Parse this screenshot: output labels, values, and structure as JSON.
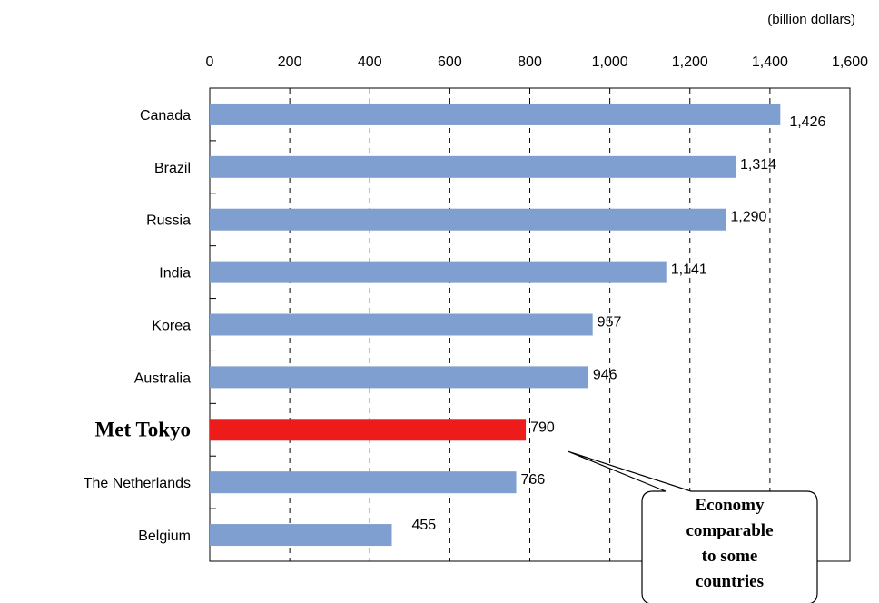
{
  "chart_data": {
    "type": "bar",
    "orientation": "horizontal",
    "unit_label": "(billion dollars)",
    "xlim": [
      0,
      1600
    ],
    "x_ticks": [
      "0",
      "200",
      "400",
      "600",
      "800",
      "1,000",
      "1,200",
      "1,400",
      "1,600"
    ],
    "grid": "vertical-dashed",
    "categories": [
      "Canada",
      "Brazil",
      "Russia",
      "India",
      "Korea",
      "Australia",
      "Met Tokyo",
      "The Netherlands",
      "Belgium"
    ],
    "values": [
      1426,
      1314,
      1290,
      1141,
      957,
      946,
      790,
      766,
      455
    ],
    "value_labels": [
      "1,426",
      "1,314",
      "1,290",
      "1,141",
      "957",
      "946",
      "790",
      "766",
      "455"
    ],
    "highlight_category": "Met Tokyo",
    "colors": {
      "bar": "#7f9fd0",
      "highlight": "#ee1b1b"
    },
    "annotation": {
      "lines": [
        "Economy",
        "comparable",
        "to some",
        "countries"
      ],
      "points_to": "Met Tokyo"
    }
  }
}
